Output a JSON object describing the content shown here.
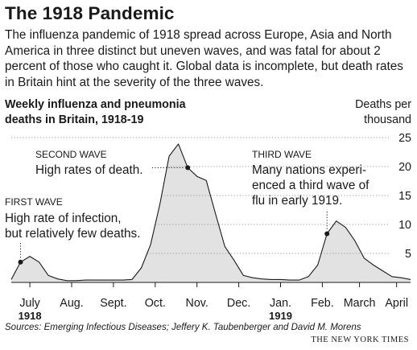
{
  "headline": "The 1918 Pandemic",
  "intro": "The influenza pandemic of 1918 spread across Europe, Asia and North America in three distinct but uneven waves, and was fatal for about 2 percent of those who caught it. Global data is incomplete, but death rates in Britain hint at the severity of the three waves.",
  "source": "Sources: Emerging Infectious Diseases; Jeffery K. Taubenberger and David M. Morens",
  "credit": "THE NEW YORK TIMES",
  "colors": {
    "area_fill": "#e2e2e2",
    "line": "#1a1a1a",
    "grid": "#9a9a9a",
    "text": "#1a1a1a"
  },
  "chart_data": {
    "type": "area",
    "title": "Weekly influenza and pneumonia deaths in Britain, 1918-19",
    "title_lines": [
      "Weekly influenza and pneumonia",
      "deaths in Britain, 1918-19"
    ],
    "ylabel": "Deaths per thousand",
    "ylabel_lines": [
      "Deaths per",
      "thousand"
    ],
    "ylim": [
      0,
      25
    ],
    "yticks": [
      5,
      10,
      15,
      20,
      25
    ],
    "y_axis_position": "right",
    "grid": "dotted horizontal",
    "x_unit": "week",
    "x_range": [
      0,
      43
    ],
    "x_tick_labels": [
      {
        "week": 2,
        "label": "July",
        "year": "1918"
      },
      {
        "week": 6.5,
        "label": "Aug."
      },
      {
        "week": 11,
        "label": "Sept."
      },
      {
        "week": 15.5,
        "label": "Oct."
      },
      {
        "week": 20,
        "label": "Nov."
      },
      {
        "week": 24.5,
        "label": "Dec."
      },
      {
        "week": 29,
        "label": "Jan.",
        "year": "1919"
      },
      {
        "week": 33.5,
        "label": "Feb."
      },
      {
        "week": 37.5,
        "label": "March"
      },
      {
        "week": 41.5,
        "label": "April"
      }
    ],
    "x": [
      0,
      1,
      2,
      3,
      4,
      5,
      6,
      7,
      8,
      9,
      10,
      11,
      12,
      13,
      14,
      15,
      16,
      17,
      18,
      19,
      20,
      21,
      22,
      23,
      24,
      25,
      26,
      27,
      28,
      29,
      30,
      31,
      32,
      33,
      34,
      35,
      36,
      37,
      38,
      39,
      40,
      41,
      42,
      43
    ],
    "values": [
      0.5,
      3.5,
      4.5,
      3.5,
      1.2,
      0.6,
      0.3,
      0.3,
      0.4,
      0.4,
      0.4,
      0.4,
      0.4,
      0.5,
      2.5,
      6.5,
      13.5,
      21.8,
      23.9,
      19.8,
      18.3,
      17.6,
      11.8,
      6.2,
      3.8,
      1.2,
      0.8,
      0.6,
      0.5,
      0.5,
      0.4,
      0.4,
      1.0,
      3.0,
      8.4,
      10.6,
      9.5,
      7.2,
      4.2,
      3.0,
      2.0,
      1.0,
      0.8,
      0.5
    ],
    "annotations": [
      {
        "heading": "FIRST WAVE",
        "lines": [
          "High rate of infection,",
          "but relatively few deaths."
        ],
        "week": 1,
        "value": 3.5
      },
      {
        "heading": "SECOND WAVE",
        "lines": [
          "High rates of death."
        ],
        "week": 19,
        "value": 19.8
      },
      {
        "heading": "THIRD WAVE",
        "lines": [
          "Many nations experi-",
          "enced a third wave of",
          "flu in early 1919."
        ],
        "week": 34,
        "value": 8.4
      }
    ]
  }
}
